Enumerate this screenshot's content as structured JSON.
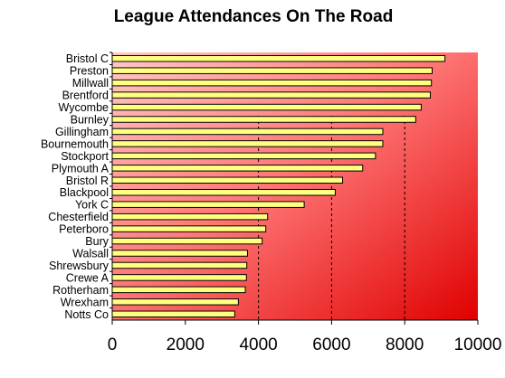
{
  "chart_data": {
    "type": "bar",
    "orientation": "horizontal",
    "title": "League Attendances On The Road",
    "xlabel": "",
    "ylabel": "",
    "categories": [
      "Bristol C",
      "Preston",
      "Millwall",
      "Brentford",
      "Wycombe",
      "Burnley",
      "Gillingham",
      "Bournemouth",
      "Stockport",
      "Plymouth A",
      "Bristol R",
      "Blackpool",
      "York C",
      "Chesterfield",
      "Peterboro",
      "Bury",
      "Walsall",
      "Shrewsbury",
      "Crewe A",
      "Rotherham",
      "Wrexham",
      "Notts Co"
    ],
    "values": [
      9100,
      8750,
      8730,
      8700,
      8450,
      8300,
      7400,
      7400,
      7200,
      6850,
      6300,
      6100,
      5250,
      4250,
      4200,
      4100,
      3700,
      3680,
      3670,
      3640,
      3450,
      3350
    ],
    "xlim": [
      0,
      10000
    ],
    "xticks": [
      0,
      2000,
      4000,
      6000,
      8000,
      10000
    ],
    "grid": "dashed vertical lines at 4000, 6000, 8000",
    "legend": "none",
    "colors": {
      "bar_fill": "#ffff80",
      "bar_stroke": "#000000",
      "plot_bg_top": "#ffc0c0",
      "plot_bg_bottom": "#e60000"
    }
  }
}
